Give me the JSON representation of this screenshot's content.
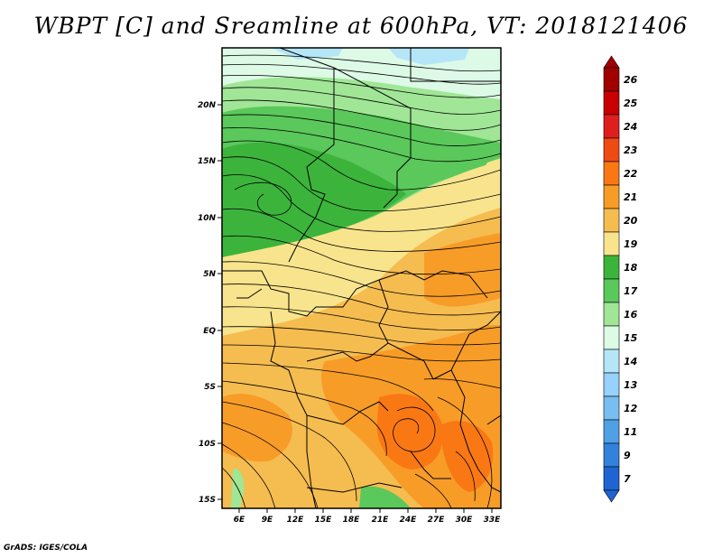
{
  "title": "WBPT [C] and Sreamline at 600hPa, VT: 2018121406",
  "credit": "GrADS: IGES/COLA",
  "map": {
    "lat_labels": [
      "20N",
      "15N",
      "10N",
      "5N",
      "EQ",
      "5S",
      "10S",
      "15S"
    ],
    "lon_labels": [
      "6E",
      "9E",
      "12E",
      "15E",
      "18E",
      "21E",
      "24E",
      "27E",
      "30E",
      "33E"
    ]
  },
  "legend": {
    "labels": [
      "26",
      "25",
      "24",
      "23",
      "22",
      "21",
      "20",
      "19",
      "18",
      "17",
      "16",
      "15",
      "14",
      "13",
      "12",
      "11",
      "9",
      "7"
    ],
    "colors": {
      "26": "#a00000",
      "25": "#c80000",
      "24": "#e01e1e",
      "23": "#f04a14",
      "22": "#fa7814",
      "21": "#f89c28",
      "20": "#f5bc50",
      "19": "#f8e48c",
      "18": "#3cb43c",
      "17": "#5ac85a",
      "16": "#a0e696",
      "15": "#dcfae6",
      "14": "#b4e6f8",
      "13": "#96d2fa",
      "12": "#78bef0",
      "11": "#50a0e6",
      "9": "#3282dc",
      "7": "#1e64d2"
    }
  }
}
